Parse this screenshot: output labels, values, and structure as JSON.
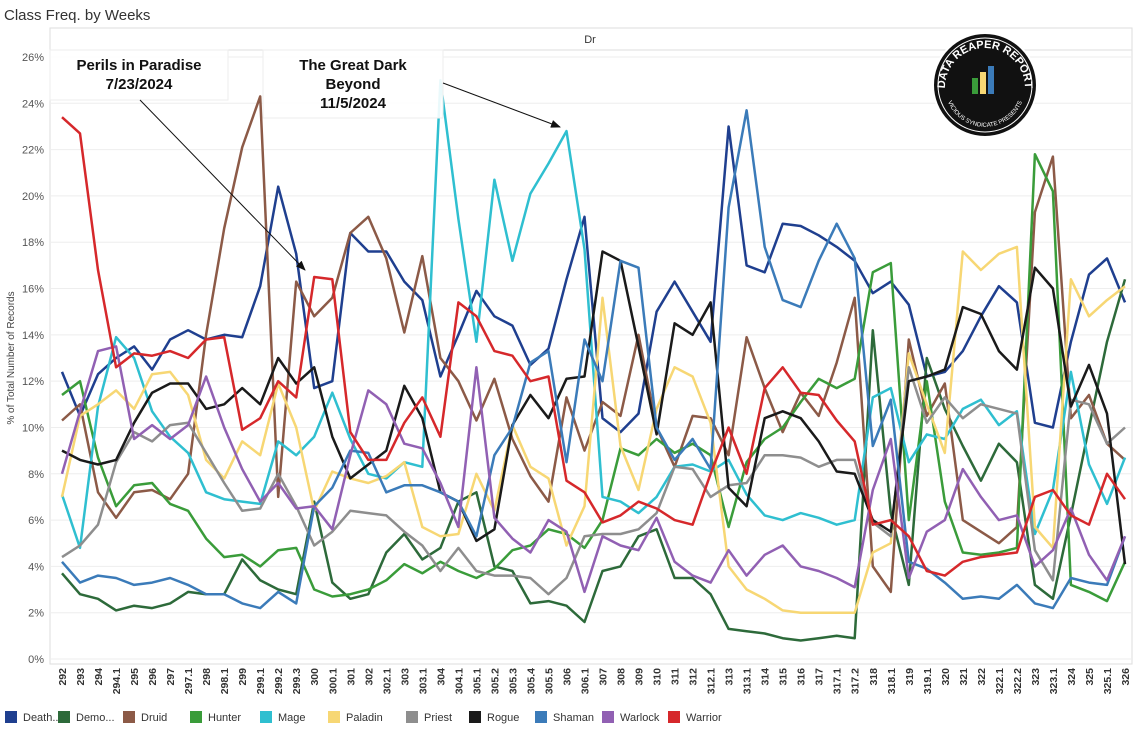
{
  "chart_data": {
    "type": "line",
    "title": "Class Freq. by Weeks",
    "header": "Dr",
    "y_label": "% of Total Number of Records",
    "ylim": [
      0,
      26
    ],
    "yticks": [
      {
        "value": 0,
        "label": "0%"
      },
      {
        "value": 2,
        "label": "2%"
      },
      {
        "value": 4,
        "label": "4%"
      },
      {
        "value": 6,
        "label": "6%"
      },
      {
        "value": 8,
        "label": "8%"
      },
      {
        "value": 10,
        "label": "10%"
      },
      {
        "value": 12,
        "label": "12%"
      },
      {
        "value": 14,
        "label": "14%"
      },
      {
        "value": 16,
        "label": "16%"
      },
      {
        "value": 18,
        "label": "18%"
      },
      {
        "value": 20,
        "label": "20%"
      },
      {
        "value": 22,
        "label": "22%"
      },
      {
        "value": 24,
        "label": "24%"
      },
      {
        "value": 26,
        "label": "26%"
      }
    ],
    "grid": true,
    "categories": [
      "292",
      "293",
      "294",
      "294.1",
      "295",
      "296",
      "297",
      "297.1",
      "298",
      "298.1",
      "299",
      "299.1",
      "299.2",
      "299.3",
      "300",
      "300.1",
      "301",
      "302",
      "302.1",
      "303",
      "303.1",
      "304",
      "304.1",
      "305.1",
      "305.2",
      "305.3",
      "305.4",
      "305.5",
      "306",
      "306.1",
      "307",
      "308",
      "309",
      "310",
      "311",
      "312",
      "312.1",
      "313",
      "313.1",
      "314",
      "315",
      "316",
      "317",
      "317.1",
      "317.2",
      "318",
      "318.1",
      "319",
      "319.1",
      "320",
      "321",
      "322",
      "322.1",
      "322.2",
      "323",
      "323.1",
      "324",
      "325",
      "325.1",
      "326"
    ],
    "annotations": [
      {
        "lines": [
          "Perils in Paradise",
          "7/23/2024"
        ]
      },
      {
        "lines": [
          "The Great Dark",
          "Beyond",
          "11/5/2024"
        ]
      }
    ],
    "logo": {
      "title": "DATA REAPER REPORT",
      "subtitle": "VICIOUS SYNDICATE PRESENTS"
    },
    "series": [
      {
        "name": "Death...",
        "color": "#1f3f8f",
        "values": [
          12.4,
          10.5,
          12.3,
          13,
          13.5,
          12.5,
          13.8,
          14.2,
          13.8,
          14,
          13.9,
          16.1,
          20.4,
          17.5,
          11.7,
          12,
          18.4,
          17.6,
          17.6,
          16.3,
          15.5,
          12.2,
          14,
          15.9,
          14.8,
          14.4,
          12.7,
          13.4,
          16.4,
          19.1,
          10.4,
          9.8,
          10.6,
          15,
          16.3,
          15,
          13.7,
          23,
          17,
          16.7,
          18.8,
          18.7,
          18.3,
          17.8,
          17.2,
          15.8,
          16.3,
          15.3,
          12.2,
          12.4,
          13.3,
          14.8,
          16.1,
          15.4,
          10.2,
          10,
          13.7,
          16.6,
          17.3,
          15.4
        ]
      },
      {
        "name": "Demo...",
        "color": "#2d6a3a",
        "values": [
          3.7,
          2.8,
          2.6,
          2.1,
          2.3,
          2.2,
          2.4,
          2.9,
          2.8,
          2.8,
          4.3,
          3.4,
          3.0,
          2.8,
          6.8,
          3.3,
          2.6,
          2.8,
          4.6,
          5.4,
          4.3,
          4.8,
          6.8,
          7.2,
          4.0,
          3.8,
          2.4,
          2.5,
          2.3,
          1.6,
          3.8,
          4.0,
          5.3,
          5.6,
          3.5,
          3.5,
          2.8,
          1.3,
          1.2,
          1.1,
          0.9,
          0.8,
          0.9,
          1.0,
          0.9,
          14.2,
          6.3,
          3.2,
          13.0,
          10.8,
          9.2,
          7.7,
          9.3,
          8.5,
          3.2,
          2.6,
          6.2,
          10.0,
          13.7,
          16.4
        ]
      },
      {
        "name": "Druid",
        "color": "#8c5a47",
        "values": [
          10.3,
          11,
          7.2,
          6.1,
          7.2,
          7.3,
          6.9,
          8,
          14,
          18.6,
          22.1,
          24.3,
          7,
          16.3,
          14.8,
          15.6,
          18.4,
          19.1,
          17.3,
          14.1,
          17.4,
          13,
          12,
          10.3,
          12.1,
          9.5,
          7.9,
          6.8,
          11.3,
          9,
          11.1,
          10.5,
          14,
          10,
          8.3,
          10.5,
          10.4,
          8.8,
          13.9,
          11.7,
          9.8,
          11.5,
          10.5,
          12.8,
          15.6,
          4,
          2.9,
          13.8,
          10.5,
          11.9,
          6,
          5.5,
          5,
          5.7,
          19.3,
          21.7,
          10.4,
          11.4,
          9.3,
          8.6
        ]
      },
      {
        "name": "Hunter",
        "color": "#3a9c3a",
        "values": [
          11.4,
          12,
          8.7,
          6.6,
          7.5,
          7.6,
          6.7,
          6.4,
          5.2,
          4.4,
          4.5,
          4,
          4.7,
          4.8,
          3,
          2.7,
          2.8,
          3,
          3.4,
          4.1,
          3.7,
          4.2,
          3.8,
          3.5,
          3.9,
          4.7,
          4.9,
          5.6,
          5.4,
          4.8,
          6,
          9.1,
          8.8,
          9.5,
          8.9,
          9.3,
          8.8,
          5.7,
          8.5,
          9.5,
          10,
          11.1,
          12.1,
          11.7,
          12.1,
          16.7,
          17.1,
          6,
          12,
          6.8,
          4.6,
          4.5,
          4.6,
          4.8,
          21.8,
          20.2,
          3.2,
          2.9,
          2.5,
          4.2
        ]
      },
      {
        "name": "Mage",
        "color": "#2fbfd0",
        "values": [
          7.1,
          4.8,
          10.9,
          13.9,
          13,
          10.7,
          9.6,
          8.9,
          7.2,
          6.9,
          6.8,
          6.7,
          9.4,
          8.8,
          9.6,
          11.5,
          9.5,
          8,
          7.8,
          8.5,
          8.3,
          25,
          19,
          13.7,
          20.7,
          17.2,
          20.1,
          21.4,
          22.8,
          17.7,
          7,
          6.8,
          6.3,
          7,
          8.3,
          8.4,
          8.1,
          8.6,
          7.1,
          6.2,
          6,
          6.3,
          6.1,
          5.8,
          6,
          11.3,
          11.7,
          8.5,
          9.7,
          9.5,
          10.8,
          11.2,
          10.1,
          10.7,
          5.4,
          7.3,
          12.4,
          8.4,
          6.7,
          8.7
        ]
      },
      {
        "name": "Paladin",
        "color": "#f7d774",
        "values": [
          7,
          10.5,
          11,
          11.6,
          10.8,
          12.3,
          12.4,
          11.4,
          8.6,
          7.8,
          9.4,
          8.8,
          11.9,
          10,
          6.4,
          8.1,
          7.8,
          7.6,
          7.9,
          8.5,
          5.7,
          5.3,
          5.4,
          8,
          6.4,
          10.1,
          8.3,
          7.8,
          4.9,
          6.6,
          15.6,
          9.2,
          7.3,
          10.8,
          12.6,
          12.2,
          10.2,
          4,
          3,
          2.6,
          2.1,
          2,
          2,
          2,
          2,
          4.6,
          5,
          13.2,
          11,
          8.9,
          17.6,
          16.8,
          17.5,
          17.8,
          5.7,
          4.8,
          16.4,
          14.8,
          15.5,
          16.1
        ]
      },
      {
        "name": "Priest",
        "color": "#8e8e8e",
        "values": [
          4.4,
          4.9,
          5.8,
          8.5,
          9.8,
          9.4,
          10.1,
          10.2,
          8.9,
          7.6,
          6.4,
          6.5,
          8,
          6.6,
          4.9,
          5.5,
          6.4,
          6.3,
          6.2,
          5.5,
          4.9,
          3.8,
          4.8,
          3.8,
          3.6,
          3.6,
          3.5,
          2.8,
          3.5,
          5.3,
          5.4,
          5.4,
          5.6,
          6.3,
          8.3,
          8.2,
          7,
          7.5,
          7.6,
          8.8,
          8.8,
          8.7,
          8.3,
          8.6,
          8.6,
          5.9,
          5.3,
          12.6,
          10.2,
          11.3,
          10.4,
          11,
          10.8,
          10.6,
          4.7,
          3.4,
          11.2,
          11,
          9.3,
          10
        ]
      },
      {
        "name": "Rogue",
        "color": "#1a1a1a",
        "values": [
          9,
          8.6,
          8.4,
          8.6,
          10.2,
          11.5,
          11.9,
          11.9,
          10.8,
          11,
          11.7,
          11,
          13,
          11.9,
          12.6,
          9.6,
          7.8,
          8.4,
          9,
          11.8,
          10.4,
          7.2,
          6.8,
          5.1,
          5.6,
          10.1,
          11.4,
          10.4,
          12.1,
          12.2,
          17.6,
          17.2,
          13.5,
          9.7,
          14.5,
          14,
          15.4,
          7.4,
          6.6,
          10.4,
          10.7,
          10.4,
          9.4,
          8.1,
          8,
          6,
          5.5,
          12,
          12.2,
          12.5,
          15.2,
          14.9,
          13.3,
          12.5,
          16.9,
          16,
          10.9,
          12.7,
          10.6,
          4.1
        ]
      },
      {
        "name": "Shaman",
        "color": "#3b7bb9",
        "values": [
          4.2,
          3.3,
          3.6,
          3.5,
          3.2,
          3.3,
          3.5,
          3.2,
          2.8,
          2.8,
          2.4,
          2.2,
          2.9,
          2.4,
          6.6,
          7.4,
          9,
          8.9,
          7.2,
          7.5,
          7.5,
          7.2,
          6.8,
          5.3,
          8.8,
          10,
          12.8,
          13.3,
          8.5,
          13.8,
          12,
          17.2,
          16.9,
          10,
          8.6,
          9.5,
          8.2,
          19.5,
          23.7,
          17.8,
          15.5,
          15.2,
          17.2,
          18.8,
          17.3,
          9.2,
          11.2,
          4.2,
          3.9,
          3.3,
          2.6,
          2.7,
          2.6,
          3.2,
          2.4,
          2.2,
          3.5,
          3.3,
          3.2,
          5.3
        ]
      },
      {
        "name": "Warlock",
        "color": "#9160b3",
        "values": [
          8,
          10.7,
          13.3,
          13.5,
          9.5,
          10.1,
          9.5,
          10.1,
          12.2,
          10,
          8.2,
          6.8,
          7.6,
          6.5,
          6.6,
          5.6,
          8.8,
          11.6,
          11,
          9.3,
          9.1,
          7.6,
          5.7,
          12.6,
          6.1,
          5.2,
          4.6,
          6,
          5.5,
          2.9,
          5.3,
          4.9,
          4.7,
          6.1,
          4.2,
          3.6,
          3.3,
          4.7,
          3.6,
          4.5,
          4.9,
          4,
          3.8,
          3.5,
          3.1,
          7.3,
          9.5,
          3.5,
          5.5,
          6,
          8.2,
          7,
          6,
          6.2,
          4,
          4.7,
          6.5,
          4.5,
          3.4,
          5.3
        ]
      },
      {
        "name": "Warrior",
        "color": "#d6282b",
        "values": [
          23.4,
          22.7,
          16.8,
          12.6,
          13.2,
          13.1,
          13.3,
          13,
          13.8,
          13.9,
          9.9,
          10.4,
          12,
          11.3,
          16.5,
          16.4,
          9.8,
          8.6,
          8.6,
          10.2,
          11.3,
          9.6,
          15.4,
          14.8,
          13.3,
          13.1,
          12,
          12.2,
          7.7,
          7.2,
          5.9,
          6.2,
          6.8,
          6.5,
          6,
          5.8,
          8,
          10,
          8,
          11.7,
          12.6,
          11.5,
          11.4,
          10.3,
          9.4,
          5.8,
          6,
          5.3,
          3.8,
          3.6,
          4.2,
          4.4,
          4.5,
          4.6,
          7,
          7.3,
          6.2,
          5.8,
          8,
          6.9
        ]
      }
    ]
  }
}
